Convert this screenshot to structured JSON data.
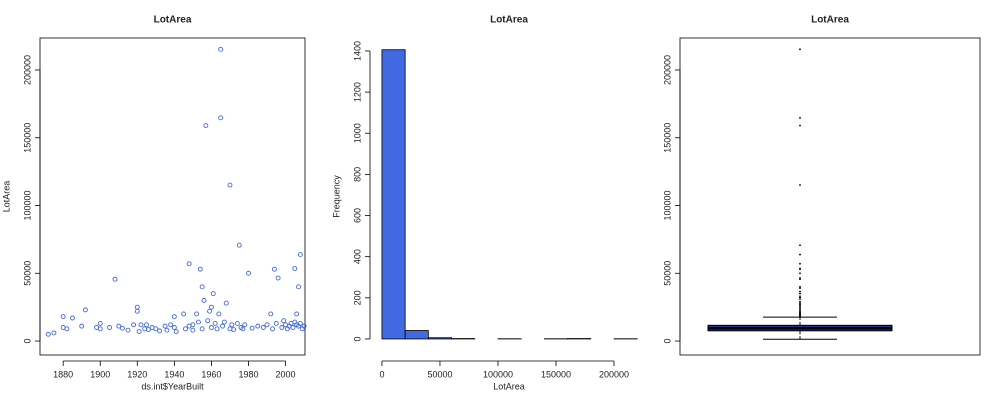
{
  "chart_data": [
    {
      "type": "scatter",
      "title": "LotArea",
      "xlabel": "ds.int$YearBuilt",
      "ylabel": "LotArea",
      "color": "#4169e1",
      "x": [
        1872,
        1875,
        1880,
        1880,
        1882,
        1885,
        1890,
        1892,
        1898,
        1900,
        1900,
        1905,
        1908,
        1910,
        1912,
        1915,
        1918,
        1920,
        1920,
        1921,
        1922,
        1924,
        1925,
        1926,
        1928,
        1930,
        1932,
        1935,
        1936,
        1938,
        1940,
        1940,
        1941,
        1945,
        1946,
        1948,
        1948,
        1950,
        1950,
        1952,
        1953,
        1954,
        1955,
        1955,
        1956,
        1957,
        1958,
        1959,
        1960,
        1960,
        1961,
        1962,
        1963,
        1964,
        1965,
        1965,
        1966,
        1967,
        1968,
        1970,
        1970,
        1971,
        1972,
        1974,
        1975,
        1976,
        1977,
        1978,
        1980,
        1982,
        1985,
        1988,
        1990,
        1992,
        1993,
        1994,
        1995,
        1996,
        1998,
        1999,
        2000,
        2001,
        2002,
        2003,
        2004,
        2005,
        2005,
        2006,
        2006,
        2007,
        2007,
        2008,
        2008,
        2009,
        2010
      ],
      "y": [
        5000,
        6000,
        10000,
        18000,
        9000,
        17000,
        11000,
        23000,
        10000,
        9000,
        13000,
        10000,
        45600,
        11000,
        9500,
        8000,
        12000,
        22000,
        25000,
        7000,
        12000,
        9000,
        12000,
        8500,
        10000,
        9000,
        7500,
        11000,
        8000,
        12000,
        10000,
        18000,
        7000,
        20000,
        9000,
        57000,
        11000,
        12000,
        8000,
        20000,
        14000,
        53000,
        40000,
        9000,
        30000,
        159000,
        15000,
        22000,
        10000,
        25000,
        35000,
        13000,
        9000,
        20000,
        215245,
        164700,
        11000,
        14000,
        28000,
        115100,
        9000,
        12000,
        8500,
        13000,
        70700,
        10000,
        9000,
        12000,
        50000,
        9500,
        11000,
        10000,
        12000,
        20000,
        9000,
        53000,
        13000,
        46500,
        10000,
        15000,
        12000,
        9000,
        11000,
        13000,
        10000,
        53500,
        14000,
        12000,
        20000,
        40000,
        11000,
        63800,
        13000,
        9000,
        11000
      ],
      "xlim": [
        1867.5,
        2010.5
      ],
      "ylim": [
        -10300,
        223600
      ],
      "xticks": [
        1880,
        1900,
        1920,
        1940,
        1960,
        1980,
        2000
      ],
      "yticks": [
        0,
        50000,
        100000,
        150000,
        200000
      ]
    },
    {
      "type": "histogram",
      "title": "LotArea",
      "xlabel": "LotArea",
      "ylabel": "Frequency",
      "color": "#4169e1",
      "bins": [
        0,
        20000,
        40000,
        60000,
        80000,
        100000,
        120000,
        140000,
        160000,
        180000,
        200000,
        220000
      ],
      "values": [
        1406,
        41,
        6,
        2,
        0,
        1,
        0,
        1,
        2,
        0,
        1
      ],
      "xlim": [
        -10300,
        229300
      ],
      "ylim": [
        -78,
        1463
      ],
      "xticks": [
        0,
        50000,
        100000,
        150000,
        200000
      ],
      "yticks": [
        0,
        200,
        400,
        600,
        800,
        1000,
        1200,
        1400
      ]
    },
    {
      "type": "box",
      "title": "LotArea",
      "color": "#1e2f8c",
      "whisker_low": 1300,
      "q1": 7554,
      "median": 9478,
      "q3": 11602,
      "whisker_high": 17671,
      "outliers": [
        18000,
        18500,
        19000,
        19500,
        20000,
        20500,
        21000,
        21500,
        22000,
        23000,
        24000,
        25000,
        26000,
        27000,
        28000,
        29000,
        31000,
        32000,
        33000,
        35000,
        36500,
        39000,
        40000,
        45600,
        46500,
        50000,
        53000,
        53500,
        57000,
        63800,
        70700,
        115100,
        159000,
        164700,
        215245
      ],
      "ylim": [
        -10300,
        223600
      ],
      "yticks": [
        0,
        50000,
        100000,
        150000,
        200000
      ]
    }
  ]
}
